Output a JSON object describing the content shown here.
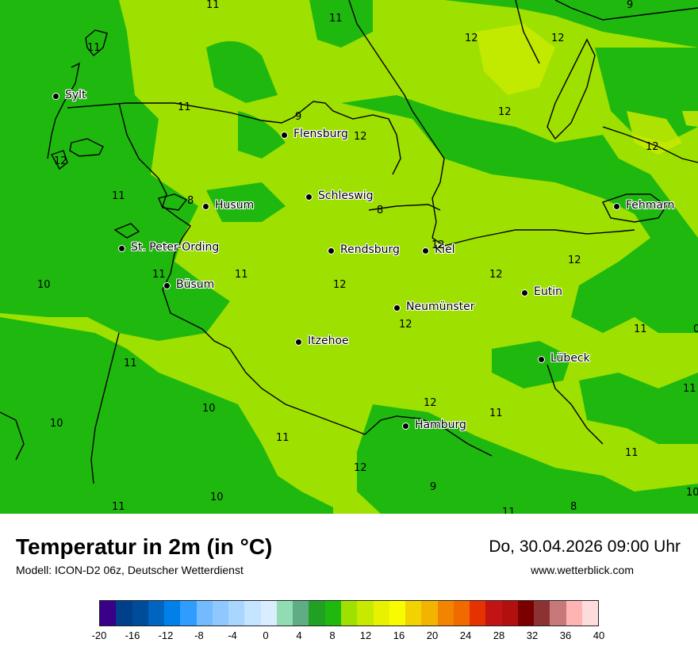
{
  "title": "Temperatur in 2m (in °C)",
  "subtitle": "Modell: ICON-D2 06z, Deutscher Wetterdienst",
  "datetime": "Do, 30.04.2026 09:00 Uhr",
  "website": "www.wetterblick.com",
  "colors": {
    "temp_8_10": "#1fb80f",
    "temp_10_12": "#9ee000",
    "temp_12_14": "#c8ea00",
    "coastline": "#000000"
  },
  "cities": [
    {
      "name": "Sylt"
    },
    {
      "name": "Flensburg"
    },
    {
      "name": "Husum"
    },
    {
      "name": "Schleswig"
    },
    {
      "name": "Fehmarn"
    },
    {
      "name": "St. Peter-Ording"
    },
    {
      "name": "Rendsburg"
    },
    {
      "name": "Kiel"
    },
    {
      "name": "Büsum"
    },
    {
      "name": "Eutin"
    },
    {
      "name": "Neumünster"
    },
    {
      "name": "Itzehoe"
    },
    {
      "name": "Lübeck"
    },
    {
      "name": "Hamburg"
    }
  ],
  "isolines": [
    "11",
    "11",
    "12",
    "12",
    "9",
    "11",
    "11",
    "12",
    "12",
    "12",
    "9",
    "12",
    "12",
    "8",
    "8",
    "11",
    "11",
    "12",
    "10",
    "11",
    "12",
    "12",
    "12",
    "11",
    "11",
    "10",
    "12",
    "11",
    "11",
    "10",
    "11",
    "12",
    "11",
    "9",
    "11",
    "10",
    "11",
    "8",
    "10",
    "0"
  ],
  "legend": {
    "colors": [
      "#3b0088",
      "#00408a",
      "#004c9a",
      "#0064c0",
      "#0080e8",
      "#2f9cff",
      "#73baff",
      "#8ec8ff",
      "#a8d6ff",
      "#c4e4ff",
      "#d9edff",
      "#92dcb4",
      "#5fac85",
      "#22a024",
      "#1fb80f",
      "#9ee000",
      "#c8ea00",
      "#e8f200",
      "#f9fb00",
      "#f2d200",
      "#f2b400",
      "#f28400",
      "#f06a00",
      "#e63200",
      "#c21414",
      "#b20f0f",
      "#7a0000",
      "#8c3232",
      "#c87878",
      "#ffb4b4",
      "#ffdcdc"
    ],
    "ticks": [
      "-20",
      "-16",
      "-12",
      "-8",
      "-4",
      "0",
      "4",
      "8",
      "12",
      "16",
      "20",
      "24",
      "28",
      "32",
      "36",
      "40"
    ]
  }
}
